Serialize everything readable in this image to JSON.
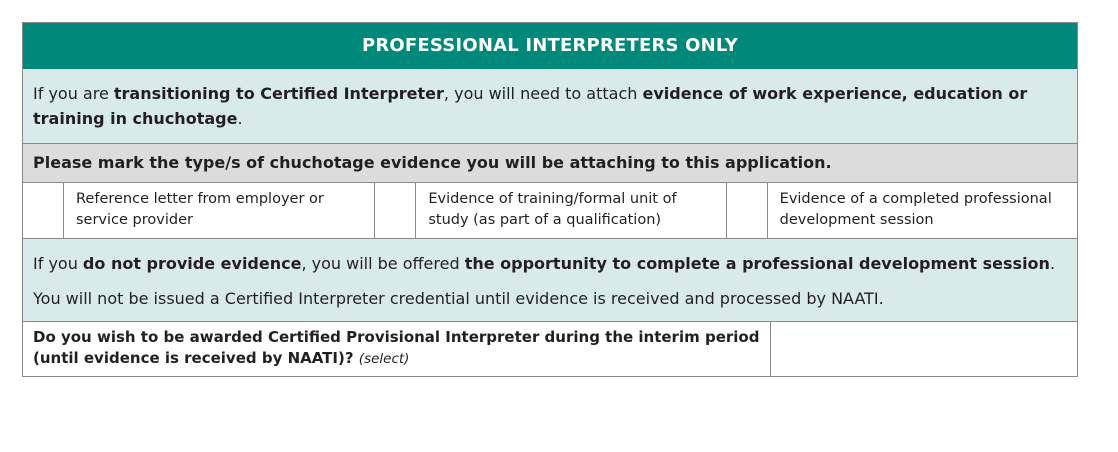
{
  "header": {
    "title": "PROFESSIONAL INTERPRETERS ONLY",
    "bg_color": "#00897b"
  },
  "intro": {
    "part1": "If you are ",
    "bold1": "transitioning to Certified Interpreter",
    "part2": ", you will need to attach ",
    "bold2": "evidence of work experience, education or training in chuchotage",
    "part3": "."
  },
  "prompt": {
    "text": "Please mark the type/s of chuchotage evidence you will be attaching to this application."
  },
  "options": [
    {
      "label": "Reference letter from employer or service provider",
      "checked": false
    },
    {
      "label": "Evidence of training/formal unit of study (as part of a qualification)",
      "checked": false
    },
    {
      "label": "Evidence of a completed professional development session",
      "checked": false
    }
  ],
  "info": {
    "p1_part1": "If you ",
    "p1_bold1": "do not provide evidence",
    "p1_part2": ", you will be offered ",
    "p1_bold2": "the opportunity to complete a professional development session",
    "p1_part3": ".",
    "p2": "You will not be issued a Certified Interpreter credential until evidence is received and processed by NAATI."
  },
  "question": {
    "text": "Do you wish to be awarded Certified Provisional Interpreter during the interim period (until evidence is received by NAATI)?",
    "hint": "(select)",
    "answer": ""
  },
  "colors": {
    "teal_header": "#00897b",
    "teal_light": "#d9ebe8",
    "grey_band": "#dcdcdc"
  }
}
